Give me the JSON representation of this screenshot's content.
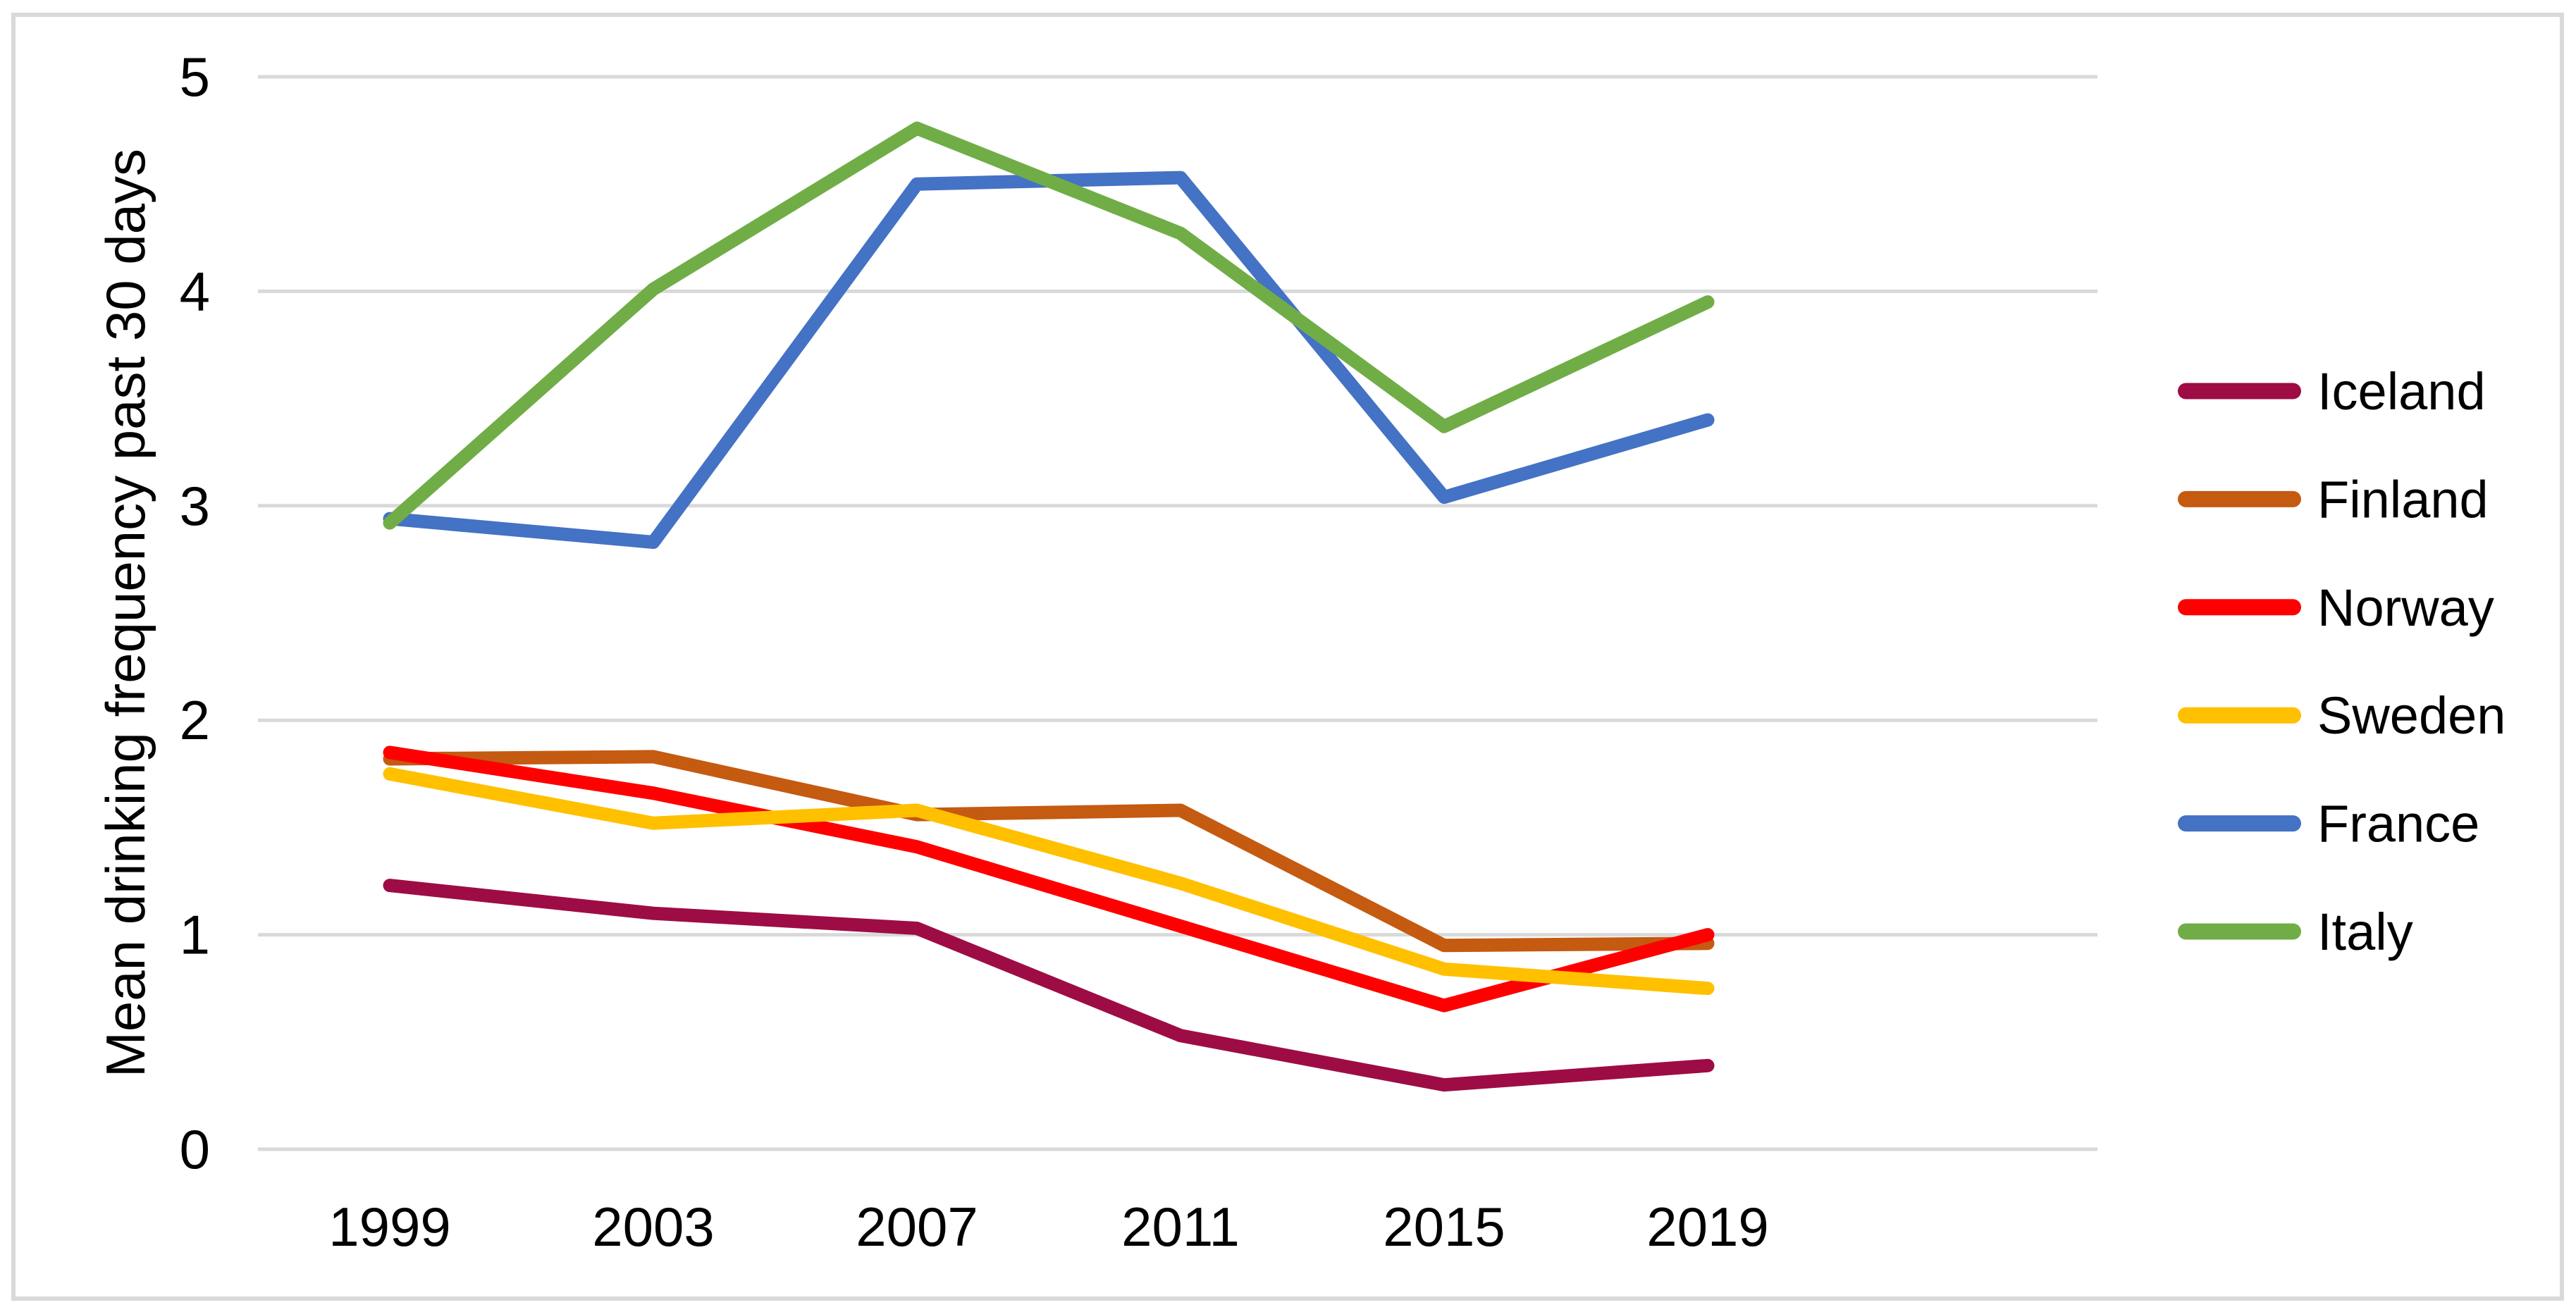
{
  "chart_data": {
    "type": "line",
    "title": "",
    "xlabel": "",
    "ylabel": "Mean drinking frequency past 30 days",
    "x": [
      "1999",
      "2003",
      "2007",
      "2011",
      "2015",
      "2019"
    ],
    "ylim": [
      0,
      5
    ],
    "yticks": [
      0,
      1,
      2,
      3,
      4,
      5
    ],
    "grid": "horizontal",
    "legend_position": "right",
    "series": [
      {
        "name": "Iceland",
        "color": "#9E0C45",
        "values": [
          1.23,
          1.1,
          1.03,
          0.53,
          0.3,
          0.39
        ]
      },
      {
        "name": "Finland",
        "color": "#C55A11",
        "values": [
          1.82,
          1.83,
          1.56,
          1.58,
          0.95,
          0.96
        ]
      },
      {
        "name": "Norway",
        "color": "#FF0000",
        "values": [
          1.85,
          1.66,
          1.41,
          1.04,
          0.67,
          1.0
        ]
      },
      {
        "name": "Sweden",
        "color": "#FFC000",
        "values": [
          1.75,
          1.52,
          1.58,
          1.24,
          0.84,
          0.75
        ]
      },
      {
        "name": "France",
        "color": "#4472C4",
        "values": [
          2.94,
          2.83,
          4.5,
          4.53,
          3.04,
          3.4
        ]
      },
      {
        "name": "Italy",
        "color": "#70AD47",
        "values": [
          2.92,
          4.01,
          4.76,
          4.27,
          3.37,
          3.95
        ]
      }
    ]
  },
  "colors": {
    "gridline": "#D9D9D9",
    "frame_border": "#D9D9D9",
    "text": "#000000",
    "background": "#FFFFFF"
  }
}
